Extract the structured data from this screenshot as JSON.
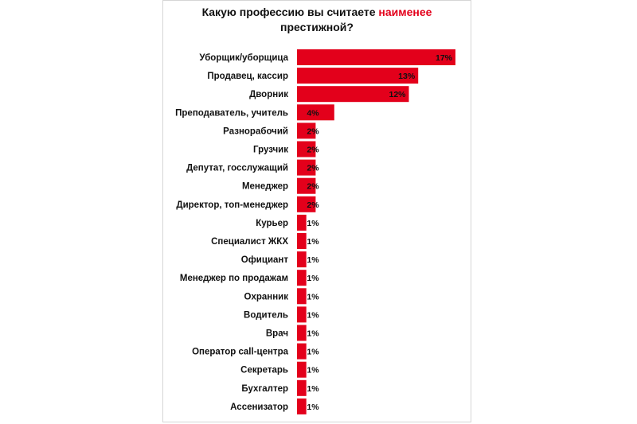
{
  "chart_data": {
    "type": "bar",
    "orientation": "horizontal",
    "title": {
      "part1": "Какую профессию вы считаете",
      "highlight": "наименее",
      "part2": "престижной?"
    },
    "categories": [
      "Уборщик/уборщица",
      "Продавец, кассир",
      "Дворник",
      "Преподаватель, учитель",
      "Разнорабочий",
      "Грузчик",
      "Депутат, госслужащий",
      "Менеджер",
      "Директор, топ-менеджер",
      "Курьер",
      "Специалист ЖКХ",
      "Официант",
      "Менеджер по продажам",
      "Охранник",
      "Водитель",
      "Врач",
      "Оператор call-центра",
      "Секретарь",
      "Бухгалтер",
      "Ассенизатор"
    ],
    "values": [
      17,
      13,
      12,
      4,
      2,
      2,
      2,
      2,
      2,
      1,
      1,
      1,
      1,
      1,
      1,
      1,
      1,
      1,
      1,
      1
    ],
    "value_labels": [
      "17%",
      "13%",
      "12%",
      "4%",
      "2%",
      "2%",
      "2%",
      "2%",
      "2%",
      "1%",
      "1%",
      "1%",
      "1%",
      "1%",
      "1%",
      "1%",
      "1%",
      "1%",
      "1%",
      "1%"
    ],
    "unit": "%",
    "bar_color": "#e3001b",
    "highlight_color": "#e3001b",
    "xlim": [
      0,
      17
    ],
    "grid": false,
    "legend": "none"
  }
}
